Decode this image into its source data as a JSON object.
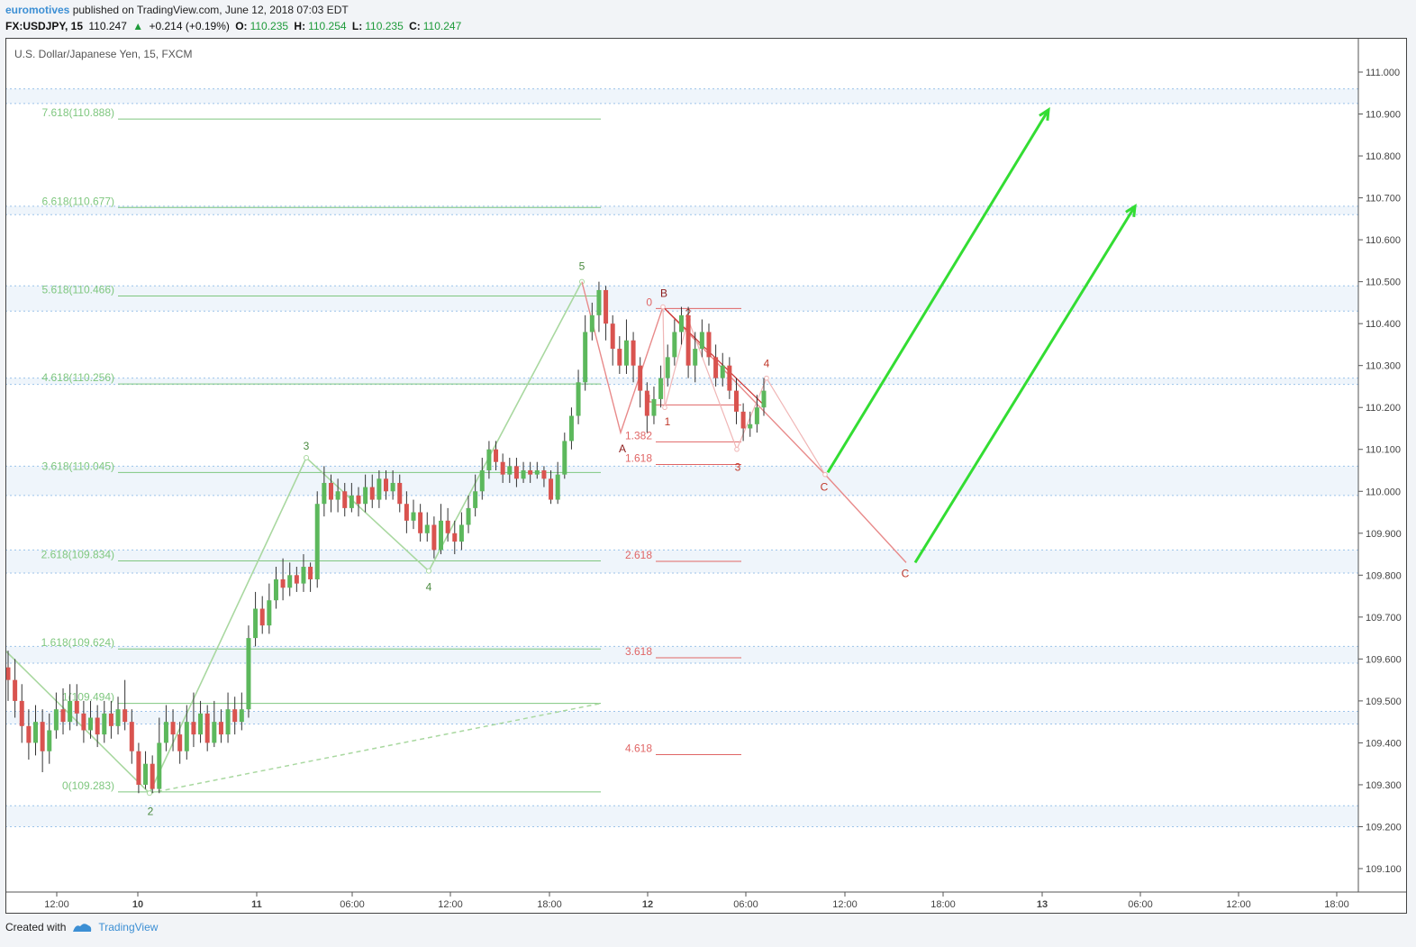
{
  "header": {
    "author": "euromotives",
    "published_text": "published on TradingView.com, June 12, 2018 07:03 EDT",
    "symbol": "FX:USDJPY, 15",
    "last": "110.247",
    "change": "+0.214 (+0.19%)",
    "o_label": "O:",
    "o_value": "110.235",
    "h_label": "H:",
    "h_value": "110.254",
    "l_label": "L:",
    "l_value": "110.235",
    "c_label": "C:",
    "c_value": "110.247"
  },
  "footer": {
    "created_with": "Created with",
    "brand": "TradingView"
  },
  "colors": {
    "up_candle": "#5cb85c",
    "down_candle": "#d9534f",
    "fib_green": "#7fc77f",
    "fib_red": "#e06666",
    "wave_green": "#a9d8a0",
    "wave_red": "#e88a8a",
    "projection_arrow": "#33dd33",
    "band": "#dce9f7"
  },
  "chart_data": {
    "type": "candlestick",
    "title": "U.S. Dollar/Japanese Yen, 15, FXCM",
    "ylim": [
      109.02,
      111.1
    ],
    "y_ticks": [
      "111.000",
      "110.900",
      "110.800",
      "110.700",
      "110.600",
      "110.500",
      "110.400",
      "110.300",
      "110.200",
      "110.100",
      "110.000",
      "109.900",
      "109.800",
      "109.700",
      "109.600",
      "109.500",
      "109.400",
      "109.300",
      "109.200",
      "109.100"
    ],
    "x_ticks": [
      "12:00",
      "10",
      "11",
      "06:00",
      "12:00",
      "18:00",
      "12",
      "06:00",
      "12:00",
      "18:00",
      "13",
      "06:00",
      "12:00",
      "18:00"
    ],
    "fib_levels_green": [
      {
        "label": "7.618(110.888)",
        "price": 110.888
      },
      {
        "label": "6.618(110.677)",
        "price": 110.677
      },
      {
        "label": "5.618(110.466)",
        "price": 110.466
      },
      {
        "label": "4.618(110.256)",
        "price": 110.256
      },
      {
        "label": "3.618(110.045)",
        "price": 110.045
      },
      {
        "label": "2.618(109.834)",
        "price": 109.834
      },
      {
        "label": "1.618(109.624)",
        "price": 109.624
      },
      {
        "label": "1(109.494)",
        "price": 109.494
      },
      {
        "label": "0(109.283)",
        "price": 109.283
      }
    ],
    "fib_levels_red": [
      {
        "label": "0",
        "price": 110.436
      },
      {
        "label": "1",
        "price": 110.206
      },
      {
        "label": "1.382",
        "price": 110.118
      },
      {
        "label": "1.618",
        "price": 110.064
      },
      {
        "label": "2.618",
        "price": 109.833
      },
      {
        "label": "3.618",
        "price": 109.603
      },
      {
        "label": "4.618",
        "price": 109.372
      }
    ],
    "wave_labels_green": [
      "2",
      "3",
      "4",
      "5"
    ],
    "wave_labels_red": [
      "A",
      "B",
      "C",
      "C",
      "1",
      "2",
      "3",
      "4",
      "1"
    ],
    "candles": [
      [
        109.58,
        109.55,
        109.62,
        109.5
      ],
      [
        109.55,
        109.5,
        109.6,
        109.46
      ],
      [
        109.5,
        109.44,
        109.54,
        109.4
      ],
      [
        109.44,
        109.4,
        109.48,
        109.36
      ],
      [
        109.4,
        109.45,
        109.49,
        109.37
      ],
      [
        109.45,
        109.38,
        109.48,
        109.33
      ],
      [
        109.38,
        109.43,
        109.47,
        109.35
      ],
      [
        109.43,
        109.48,
        109.52,
        109.41
      ],
      [
        109.48,
        109.45,
        109.53,
        109.42
      ],
      [
        109.45,
        109.5,
        109.54,
        109.43
      ],
      [
        109.5,
        109.47,
        109.54,
        109.44
      ],
      [
        109.47,
        109.43,
        109.5,
        109.4
      ],
      [
        109.43,
        109.46,
        109.5,
        109.41
      ],
      [
        109.46,
        109.42,
        109.49,
        109.39
      ],
      [
        109.42,
        109.47,
        109.5,
        109.4
      ],
      [
        109.47,
        109.44,
        109.5,
        109.41
      ],
      [
        109.44,
        109.48,
        109.51,
        109.42
      ],
      [
        109.48,
        109.45,
        109.55,
        109.43
      ],
      [
        109.45,
        109.38,
        109.48,
        109.35
      ],
      [
        109.38,
        109.3,
        109.4,
        109.28
      ],
      [
        109.3,
        109.35,
        109.38,
        109.29
      ],
      [
        109.35,
        109.29,
        109.37,
        109.28
      ],
      [
        109.29,
        109.4,
        109.46,
        109.28
      ],
      [
        109.4,
        109.45,
        109.49,
        109.38
      ],
      [
        109.45,
        109.42,
        109.48,
        109.38
      ],
      [
        109.42,
        109.38,
        109.45,
        109.35
      ],
      [
        109.38,
        109.45,
        109.49,
        109.36
      ],
      [
        109.45,
        109.42,
        109.52,
        109.39
      ],
      [
        109.42,
        109.47,
        109.5,
        109.4
      ],
      [
        109.47,
        109.4,
        109.49,
        109.38
      ],
      [
        109.4,
        109.45,
        109.5,
        109.39
      ],
      [
        109.45,
        109.42,
        109.48,
        109.4
      ],
      [
        109.42,
        109.48,
        109.52,
        109.4
      ],
      [
        109.48,
        109.45,
        109.51,
        109.42
      ],
      [
        109.45,
        109.48,
        109.52,
        109.43
      ],
      [
        109.48,
        109.65,
        109.68,
        109.46
      ],
      [
        109.65,
        109.72,
        109.76,
        109.63
      ],
      [
        109.72,
        109.68,
        109.75,
        109.66
      ],
      [
        109.68,
        109.74,
        109.78,
        109.66
      ],
      [
        109.74,
        109.79,
        109.82,
        109.72
      ],
      [
        109.79,
        109.77,
        109.84,
        109.74
      ],
      [
        109.77,
        109.8,
        109.83,
        109.75
      ],
      [
        109.8,
        109.78,
        109.82,
        109.76
      ],
      [
        109.78,
        109.82,
        109.85,
        109.76
      ],
      [
        109.82,
        109.79,
        109.83,
        109.76
      ],
      [
        109.79,
        109.97,
        110.0,
        109.77
      ],
      [
        109.97,
        110.02,
        110.06,
        109.94
      ],
      [
        110.02,
        109.98,
        110.04,
        109.95
      ],
      [
        109.98,
        110.0,
        110.03,
        109.95
      ],
      [
        110.0,
        109.96,
        110.02,
        109.94
      ],
      [
        109.96,
        109.99,
        110.02,
        109.95
      ],
      [
        109.99,
        109.97,
        110.01,
        109.94
      ],
      [
        109.97,
        110.01,
        110.04,
        109.95
      ],
      [
        110.01,
        109.98,
        110.04,
        109.96
      ],
      [
        109.98,
        110.03,
        110.05,
        109.96
      ],
      [
        110.03,
        110.0,
        110.05,
        109.98
      ],
      [
        110.0,
        110.02,
        110.05,
        109.98
      ],
      [
        110.02,
        109.97,
        110.04,
        109.95
      ],
      [
        109.97,
        109.93,
        110.0,
        109.9
      ],
      [
        109.93,
        109.95,
        109.98,
        109.91
      ],
      [
        109.95,
        109.9,
        109.97,
        109.88
      ],
      [
        109.9,
        109.92,
        109.95,
        109.88
      ],
      [
        109.92,
        109.86,
        109.94,
        109.84
      ],
      [
        109.86,
        109.93,
        109.97,
        109.85
      ],
      [
        109.93,
        109.9,
        109.96,
        109.88
      ],
      [
        109.9,
        109.88,
        109.93,
        109.85
      ],
      [
        109.88,
        109.92,
        109.95,
        109.86
      ],
      [
        109.92,
        109.96,
        109.99,
        109.9
      ],
      [
        109.96,
        110.0,
        110.04,
        109.94
      ],
      [
        110.0,
        110.05,
        110.08,
        109.98
      ],
      [
        110.05,
        110.1,
        110.12,
        110.03
      ],
      [
        110.1,
        110.07,
        110.12,
        110.05
      ],
      [
        110.07,
        110.04,
        110.09,
        110.02
      ],
      [
        110.04,
        110.06,
        110.08,
        110.02
      ],
      [
        110.06,
        110.03,
        110.08,
        110.01
      ],
      [
        110.03,
        110.05,
        110.07,
        110.02
      ],
      [
        110.05,
        110.04,
        110.07,
        110.02
      ],
      [
        110.04,
        110.05,
        110.07,
        110.03
      ],
      [
        110.05,
        110.03,
        110.06,
        110.01
      ],
      [
        110.03,
        109.98,
        110.05,
        109.97
      ],
      [
        109.98,
        110.04,
        110.07,
        109.97
      ],
      [
        110.04,
        110.12,
        110.14,
        110.03
      ],
      [
        110.12,
        110.18,
        110.2,
        110.1
      ],
      [
        110.18,
        110.26,
        110.29,
        110.16
      ],
      [
        110.26,
        110.38,
        110.42,
        110.24
      ],
      [
        110.38,
        110.42,
        110.45,
        110.36
      ],
      [
        110.42,
        110.48,
        110.5,
        110.38
      ],
      [
        110.48,
        110.4,
        110.49,
        110.36
      ],
      [
        110.4,
        110.34,
        110.42,
        110.3
      ],
      [
        110.34,
        110.3,
        110.37,
        110.28
      ],
      [
        110.3,
        110.36,
        110.41,
        110.28
      ],
      [
        110.36,
        110.3,
        110.38,
        110.26
      ],
      [
        110.3,
        110.24,
        110.32,
        110.2
      ],
      [
        110.24,
        110.18,
        110.26,
        110.14
      ],
      [
        110.18,
        110.22,
        110.25,
        110.16
      ],
      [
        110.22,
        110.27,
        110.3,
        110.2
      ],
      [
        110.27,
        110.32,
        110.35,
        110.25
      ],
      [
        110.32,
        110.38,
        110.41,
        110.3
      ],
      [
        110.38,
        110.42,
        110.44,
        110.35
      ],
      [
        110.42,
        110.3,
        110.44,
        110.27
      ],
      [
        110.3,
        110.34,
        110.38,
        110.26
      ],
      [
        110.34,
        110.38,
        110.41,
        110.32
      ],
      [
        110.38,
        110.32,
        110.4,
        110.3
      ],
      [
        110.32,
        110.27,
        110.35,
        110.25
      ],
      [
        110.27,
        110.3,
        110.33,
        110.25
      ],
      [
        110.3,
        110.24,
        110.32,
        110.22
      ],
      [
        110.24,
        110.19,
        110.27,
        110.16
      ],
      [
        110.19,
        110.15,
        110.21,
        110.12
      ],
      [
        110.15,
        110.16,
        110.19,
        110.13
      ],
      [
        110.16,
        110.2,
        110.23,
        110.14
      ],
      [
        110.2,
        110.24,
        110.27,
        110.18
      ]
    ]
  }
}
